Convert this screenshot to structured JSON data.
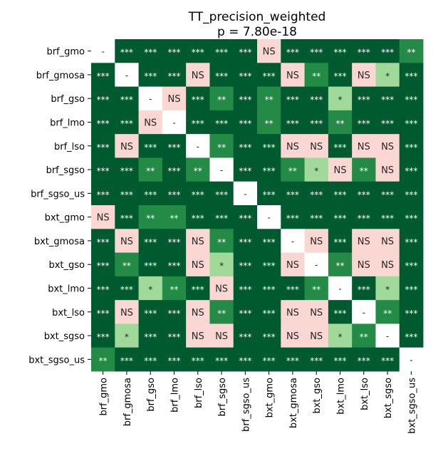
{
  "chart_data": {
    "type": "heatmap",
    "title": "TT_precision_weighted",
    "subtitle": "p = 7.80e-18",
    "labels": [
      "brf_gmo",
      "brf_gmosa",
      "brf_gso",
      "brf_lmo",
      "brf_lso",
      "brf_sgso",
      "brf_sgso_us",
      "bxt_gmo",
      "bxt_gmosa",
      "bxt_gso",
      "bxt_lmo",
      "bxt_lso",
      "bxt_sgso",
      "bxt_sgso_us"
    ],
    "cells": [
      [
        "-",
        "***",
        "***",
        "***",
        "***",
        "***",
        "***",
        "NS",
        "***",
        "***",
        "***",
        "***",
        "***",
        "**"
      ],
      [
        "***",
        "-",
        "***",
        "***",
        "NS",
        "***",
        "***",
        "***",
        "NS",
        "**",
        "***",
        "NS",
        "*",
        "***"
      ],
      [
        "***",
        "***",
        "-",
        "NS",
        "***",
        "**",
        "***",
        "**",
        "***",
        "***",
        "*",
        "***",
        "***",
        "***"
      ],
      [
        "***",
        "***",
        "NS",
        "-",
        "***",
        "***",
        "***",
        "**",
        "***",
        "***",
        "**",
        "***",
        "***",
        "***"
      ],
      [
        "***",
        "NS",
        "***",
        "***",
        "-",
        "**",
        "***",
        "***",
        "NS",
        "NS",
        "***",
        "NS",
        "NS",
        "***"
      ],
      [
        "***",
        "***",
        "**",
        "***",
        "**",
        "-",
        "***",
        "***",
        "**",
        "*",
        "NS",
        "**",
        "NS",
        "***"
      ],
      [
        "***",
        "***",
        "***",
        "***",
        "***",
        "***",
        "-",
        "***",
        "***",
        "***",
        "***",
        "***",
        "***",
        "***"
      ],
      [
        "NS",
        "***",
        "**",
        "**",
        "***",
        "***",
        "***",
        "-",
        "***",
        "***",
        "***",
        "***",
        "***",
        "***"
      ],
      [
        "***",
        "NS",
        "***",
        "***",
        "NS",
        "**",
        "***",
        "***",
        "-",
        "NS",
        "***",
        "NS",
        "NS",
        "***"
      ],
      [
        "***",
        "**",
        "***",
        "***",
        "NS",
        "*",
        "***",
        "***",
        "NS",
        "-",
        "**",
        "NS",
        "NS",
        "***"
      ],
      [
        "***",
        "***",
        "*",
        "**",
        "***",
        "NS",
        "***",
        "***",
        "***",
        "**",
        "-",
        "***",
        "*",
        "***"
      ],
      [
        "***",
        "NS",
        "***",
        "***",
        "NS",
        "**",
        "***",
        "***",
        "NS",
        "NS",
        "***",
        "-",
        "**",
        "***"
      ],
      [
        "***",
        "*",
        "***",
        "***",
        "NS",
        "NS",
        "***",
        "***",
        "NS",
        "NS",
        "*",
        "**",
        "-",
        "***"
      ],
      [
        "**",
        "***",
        "***",
        "***",
        "***",
        "***",
        "***",
        "***",
        "***",
        "***",
        "***",
        "***",
        "***",
        "-"
      ]
    ],
    "colors": {
      "***": "#005a2f",
      "**": "#238b45",
      "*": "#a1d99b",
      "NS": "#fbd7d4",
      "-": "#ffffff"
    },
    "text_colors": {
      "***": "#ffffff",
      "**": "#ffffff",
      "*": "#262626",
      "NS": "#262626",
      "-": "#262626"
    }
  }
}
